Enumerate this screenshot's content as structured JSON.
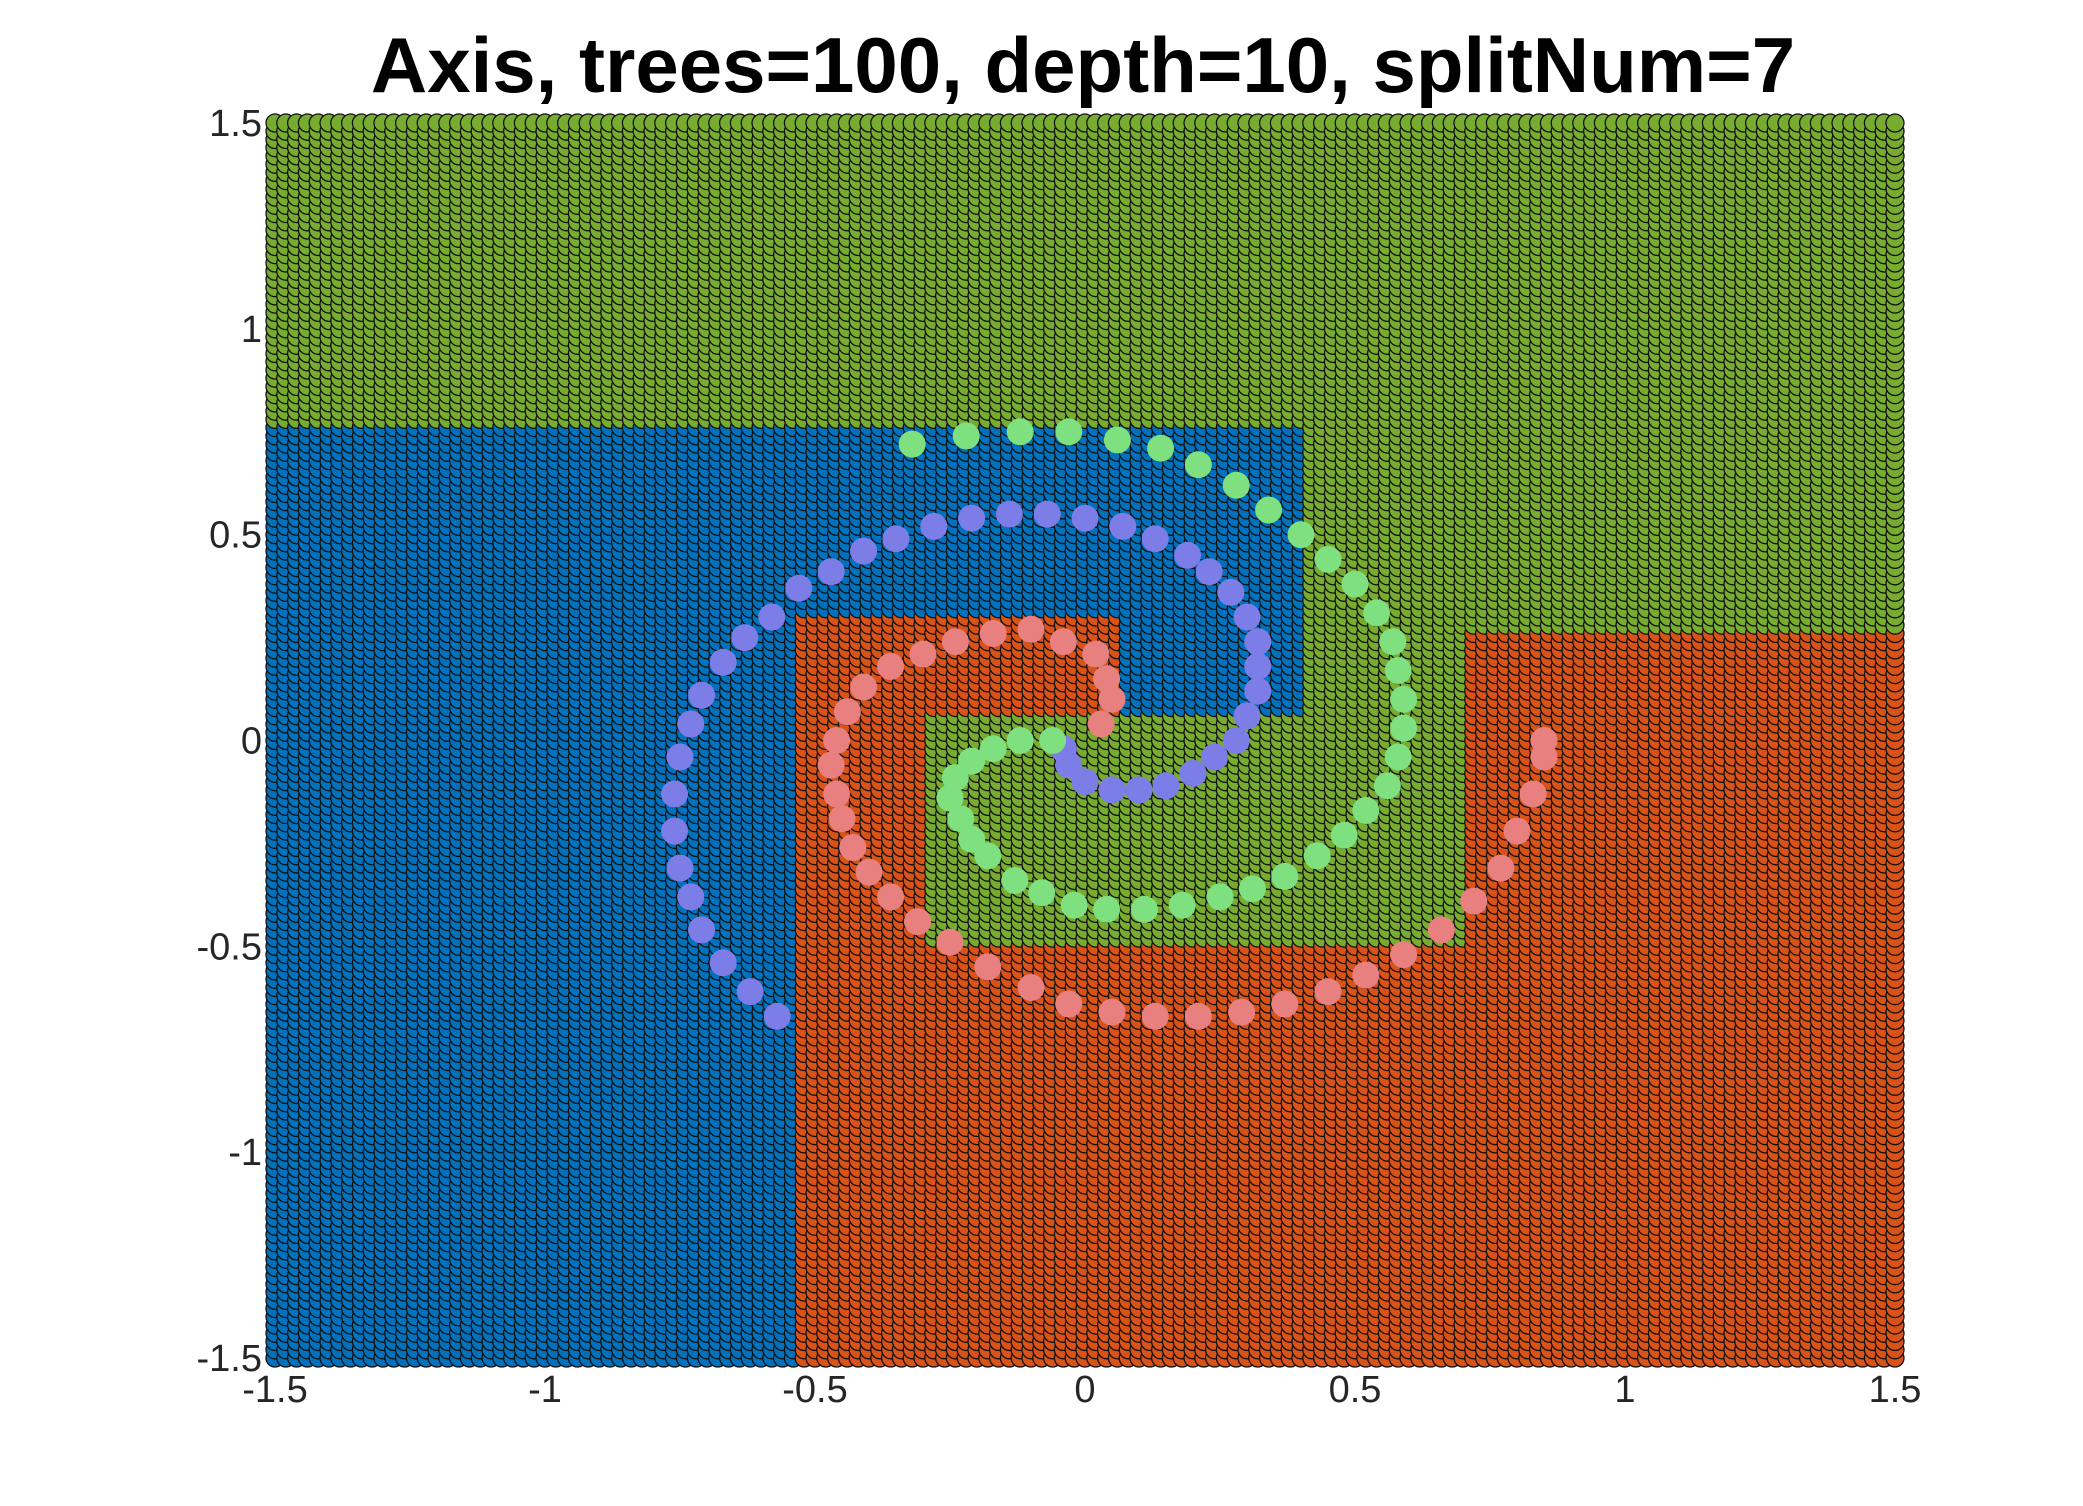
{
  "chart_data": {
    "type": "scatter",
    "title": "Axis, trees=100, depth=10, splitNum=7",
    "xlabel": "",
    "ylabel": "",
    "xlim": [
      -1.5,
      1.5
    ],
    "ylim": [
      -1.5,
      1.5
    ],
    "x_ticks": [
      "-1.5",
      "-1",
      "-0.5",
      "0",
      "0.5",
      "1",
      "1.5"
    ],
    "x_tick_values": [
      -1.5,
      -1,
      -0.5,
      0,
      0.5,
      1,
      1.5
    ],
    "y_ticks": [
      "-1.5",
      "-1",
      "-0.5",
      "0",
      "0.5",
      "1",
      "1.5"
    ],
    "y_tick_values": [
      -1.5,
      -1,
      -0.5,
      0,
      0.5,
      1,
      1.5
    ],
    "grid": false,
    "background_grid_step": 0.02,
    "regions": {
      "classes": [
        "blue",
        "red",
        "green"
      ],
      "colors": {
        "blue": "#0072BD",
        "red": "#D95319",
        "green": "#77AC30"
      },
      "rules": [
        {
          "class": "green",
          "when": "y > 0.78"
        },
        {
          "class": "blue",
          "when": "x < -0.52 and y <= 0.78"
        },
        {
          "class": "green",
          "when": "x >= 0.72 and y > 0.27"
        },
        {
          "class": "red",
          "when": "x >= 0.72 and y <= 0.27"
        },
        {
          "class": "green",
          "when": "x in [0.41,0.72) and y >= -0.48"
        },
        {
          "class": "red",
          "when": "x in [0.41,0.72) and y < -0.48"
        },
        {
          "class": "blue",
          "when": "x in [-0.52,0.41) and y > 0.32"
        },
        {
          "class": "red",
          "when": "x in [-0.52,-0.28) and y <= 0.32"
        },
        {
          "class": "green",
          "when": "x in [-0.28,0.41) and y in [-0.48,0.07)"
        },
        {
          "class": "red",
          "when": "x in [-0.28,0.41) and y < -0.48"
        },
        {
          "class": "red",
          "when": "x in [-0.28,0.08) and y in [0.07,0.32]"
        },
        {
          "class": "blue",
          "when": "x in [0.08,0.41) and y in [-0.2,0.32]"
        }
      ]
    },
    "series": [
      {
        "color": "#7D7DE8",
        "points": [
          [
            -0.57,
            -0.67
          ],
          [
            -0.62,
            -0.61
          ],
          [
            -0.67,
            -0.54
          ],
          [
            -0.71,
            -0.46
          ],
          [
            -0.73,
            -0.38
          ],
          [
            -0.75,
            -0.31
          ],
          [
            -0.76,
            -0.22
          ],
          [
            -0.76,
            -0.13
          ],
          [
            -0.75,
            -0.04
          ],
          [
            -0.73,
            0.04
          ],
          [
            -0.71,
            0.11
          ],
          [
            -0.67,
            0.19
          ],
          [
            -0.63,
            0.25
          ],
          [
            -0.58,
            0.3
          ],
          [
            -0.53,
            0.37
          ],
          [
            -0.47,
            0.41
          ],
          [
            -0.41,
            0.46
          ],
          [
            -0.35,
            0.49
          ],
          [
            -0.28,
            0.52
          ],
          [
            -0.21,
            0.54
          ],
          [
            -0.14,
            0.55
          ],
          [
            -0.07,
            0.55
          ],
          [
            0.0,
            0.54
          ],
          [
            0.07,
            0.52
          ],
          [
            0.13,
            0.49
          ],
          [
            0.19,
            0.45
          ],
          [
            0.23,
            0.41
          ],
          [
            0.27,
            0.36
          ],
          [
            0.3,
            0.3
          ],
          [
            0.32,
            0.24
          ],
          [
            0.32,
            0.18
          ],
          [
            0.32,
            0.12
          ],
          [
            0.3,
            0.06
          ],
          [
            0.28,
            0.0
          ],
          [
            0.24,
            -0.04
          ],
          [
            0.2,
            -0.08
          ],
          [
            0.15,
            -0.11
          ],
          [
            0.1,
            -0.12
          ],
          [
            0.05,
            -0.12
          ],
          [
            0.0,
            -0.1
          ],
          [
            -0.03,
            -0.06
          ],
          [
            -0.04,
            -0.02
          ]
        ]
      },
      {
        "color": "#E88080",
        "points": [
          [
            0.03,
            0.04
          ],
          [
            0.05,
            0.1
          ],
          [
            0.04,
            0.15
          ],
          [
            0.02,
            0.21
          ],
          [
            -0.04,
            0.24
          ],
          [
            -0.1,
            0.27
          ],
          [
            -0.17,
            0.26
          ],
          [
            -0.24,
            0.24
          ],
          [
            -0.3,
            0.21
          ],
          [
            -0.36,
            0.18
          ],
          [
            -0.41,
            0.13
          ],
          [
            -0.44,
            0.07
          ],
          [
            -0.46,
            0.0
          ],
          [
            -0.47,
            -0.06
          ],
          [
            -0.46,
            -0.13
          ],
          [
            -0.45,
            -0.19
          ],
          [
            -0.43,
            -0.26
          ],
          [
            -0.4,
            -0.32
          ],
          [
            -0.36,
            -0.38
          ],
          [
            -0.31,
            -0.44
          ],
          [
            -0.25,
            -0.49
          ],
          [
            -0.18,
            -0.55
          ],
          [
            -0.1,
            -0.6
          ],
          [
            -0.03,
            -0.64
          ],
          [
            0.05,
            -0.66
          ],
          [
            0.13,
            -0.67
          ],
          [
            0.21,
            -0.67
          ],
          [
            0.29,
            -0.66
          ],
          [
            0.37,
            -0.64
          ],
          [
            0.45,
            -0.61
          ],
          [
            0.52,
            -0.57
          ],
          [
            0.59,
            -0.52
          ],
          [
            0.66,
            -0.46
          ],
          [
            0.72,
            -0.39
          ],
          [
            0.77,
            -0.31
          ],
          [
            0.8,
            -0.22
          ],
          [
            0.83,
            -0.13
          ],
          [
            0.85,
            -0.04
          ],
          [
            0.85,
            0.0
          ]
        ]
      },
      {
        "color": "#7FE07F",
        "points": [
          [
            -0.06,
            0.0
          ],
          [
            -0.12,
            0.0
          ],
          [
            -0.17,
            -0.02
          ],
          [
            -0.21,
            -0.05
          ],
          [
            -0.24,
            -0.09
          ],
          [
            -0.25,
            -0.14
          ],
          [
            -0.23,
            -0.19
          ],
          [
            -0.21,
            -0.24
          ],
          [
            -0.18,
            -0.28
          ],
          [
            -0.13,
            -0.34
          ],
          [
            -0.08,
            -0.37
          ],
          [
            -0.02,
            -0.4
          ],
          [
            0.04,
            -0.41
          ],
          [
            0.11,
            -0.41
          ],
          [
            0.18,
            -0.4
          ],
          [
            0.25,
            -0.38
          ],
          [
            0.31,
            -0.36
          ],
          [
            0.37,
            -0.33
          ],
          [
            0.43,
            -0.28
          ],
          [
            0.48,
            -0.23
          ],
          [
            0.52,
            -0.17
          ],
          [
            0.56,
            -0.11
          ],
          [
            0.58,
            -0.04
          ],
          [
            0.59,
            0.03
          ],
          [
            0.59,
            0.1
          ],
          [
            0.58,
            0.17
          ],
          [
            0.57,
            0.24
          ],
          [
            0.54,
            0.31
          ],
          [
            0.5,
            0.38
          ],
          [
            0.45,
            0.44
          ],
          [
            0.4,
            0.5
          ],
          [
            0.34,
            0.56
          ],
          [
            0.28,
            0.62
          ],
          [
            0.21,
            0.67
          ],
          [
            0.14,
            0.71
          ],
          [
            0.06,
            0.73
          ],
          [
            -0.03,
            0.75
          ],
          [
            -0.12,
            0.75
          ],
          [
            -0.22,
            0.74
          ],
          [
            -0.32,
            0.72
          ]
        ]
      }
    ]
  }
}
